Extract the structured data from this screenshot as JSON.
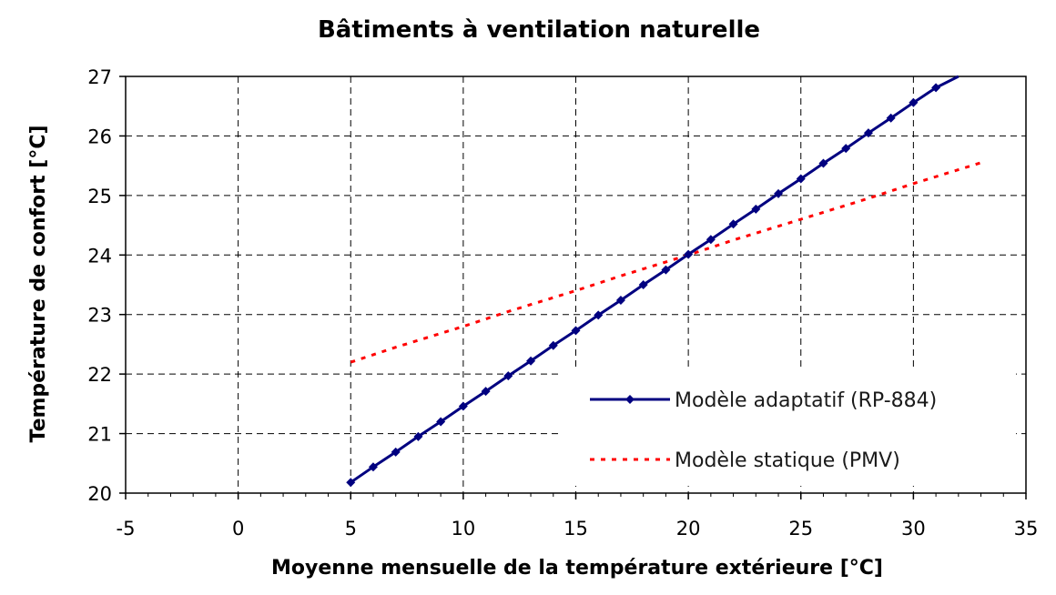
{
  "chart_data": {
    "type": "line",
    "title": "Bâtiments à ventilation naturelle",
    "xlabel": "Moyenne mensuelle de la température extérieure [°C]",
    "ylabel": "Température de confort [°C]",
    "xlim": [
      -5,
      35
    ],
    "ylim": [
      20,
      27
    ],
    "xticks": [
      -5,
      0,
      5,
      10,
      15,
      20,
      25,
      30,
      35
    ],
    "yticks": [
      20,
      21,
      22,
      23,
      24,
      25,
      26,
      27
    ],
    "grid": true,
    "legend_position": "bottom-right",
    "series": [
      {
        "name": "Modèle adaptatif (RP-884)",
        "color": "#000080",
        "style": "solid-with-diamond-markers",
        "x": [
          5,
          6,
          7,
          8,
          9,
          10,
          11,
          12,
          13,
          14,
          15,
          16,
          17,
          18,
          19,
          20,
          21,
          22,
          23,
          24,
          25,
          26,
          27,
          28,
          29,
          30,
          31,
          32
        ],
        "y": [
          20.18,
          20.44,
          20.69,
          20.95,
          21.2,
          21.46,
          21.71,
          21.97,
          22.22,
          22.48,
          22.73,
          22.99,
          23.24,
          23.5,
          23.75,
          24.01,
          24.26,
          24.52,
          24.77,
          25.03,
          25.28,
          25.54,
          25.79,
          26.05,
          26.3,
          26.56,
          26.81,
          27.0
        ]
      },
      {
        "name": "Modèle statique (PMV)",
        "color": "#ff0000",
        "style": "dotted",
        "x": [
          5,
          7,
          10,
          12,
          15,
          17,
          20,
          22,
          25,
          28,
          30,
          33
        ],
        "y": [
          22.2,
          22.45,
          22.8,
          23.05,
          23.4,
          23.65,
          24.0,
          24.25,
          24.6,
          24.95,
          25.2,
          25.55
        ]
      }
    ]
  }
}
